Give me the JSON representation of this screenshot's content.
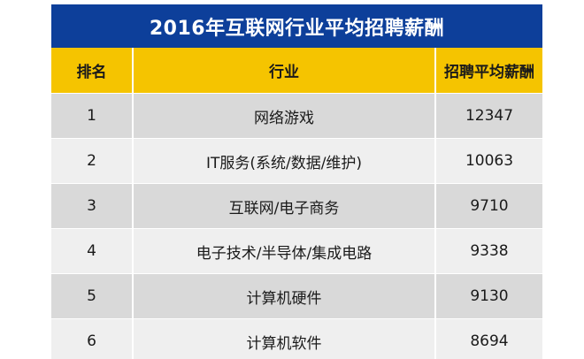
{
  "title": "2016年互联网行业平均招聘薪酬",
  "headers": {
    "rank": "排名",
    "industry": "行业",
    "salary": "招聘平均薪酬"
  },
  "rows": [
    {
      "rank": "1",
      "industry": "网络游戏",
      "salary": "12347"
    },
    {
      "rank": "2",
      "industry": "IT服务(系统/数据/维护)",
      "salary": "10063"
    },
    {
      "rank": "3",
      "industry": "互联网/电子商务",
      "salary": "9710"
    },
    {
      "rank": "4",
      "industry": "电子技术/半导体/集成电路",
      "salary": "9338"
    },
    {
      "rank": "5",
      "industry": "计算机硬件",
      "salary": "9130"
    },
    {
      "rank": "6",
      "industry": "计算机软件",
      "salary": "8694"
    }
  ],
  "colors": {
    "title_bg": "#0d3f9a",
    "header_bg": "#f5c400",
    "row_dark": "#d9d9d9",
    "row_light": "#efefef"
  }
}
